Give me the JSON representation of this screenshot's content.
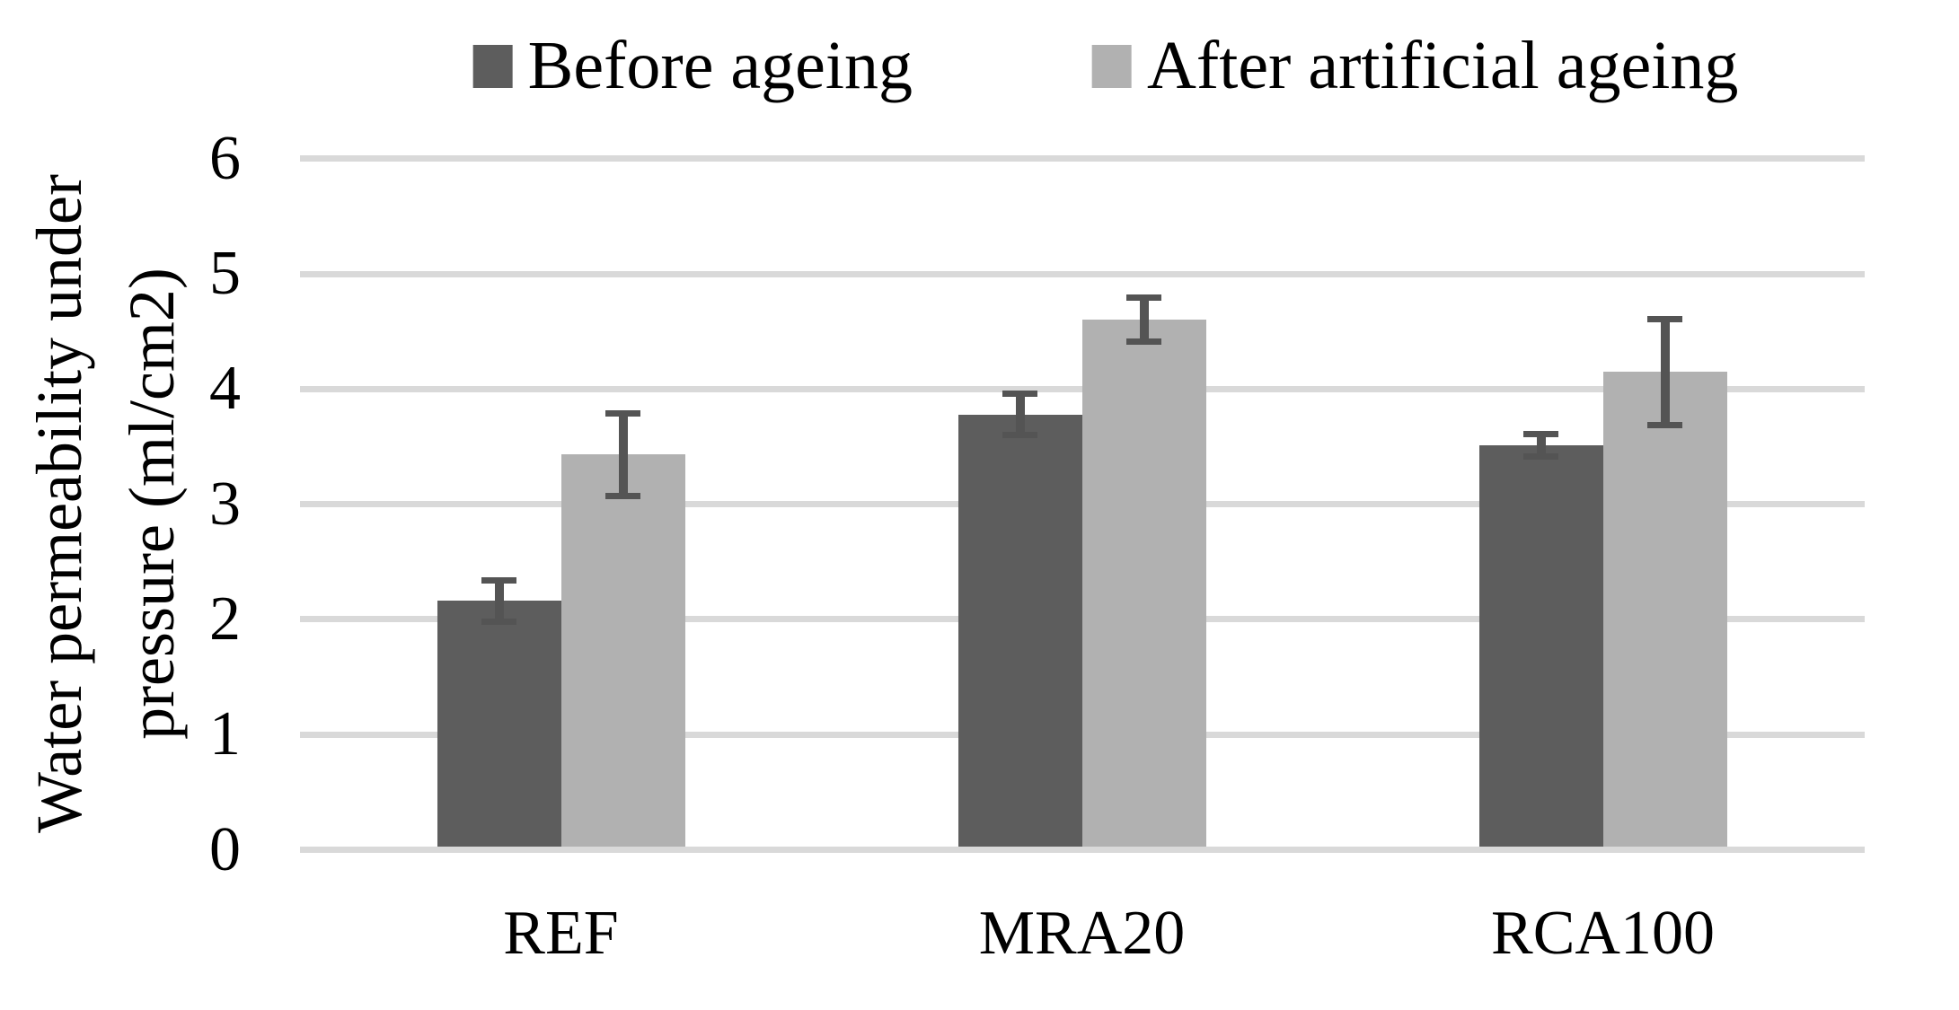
{
  "chart_data": {
    "type": "bar",
    "title": "",
    "categories": [
      "REF",
      "MRA20",
      "RCA100"
    ],
    "series": [
      {
        "name": "Before ageing",
        "color": "#5d5d5d",
        "values": [
          2.16,
          3.78,
          3.51
        ],
        "errors": [
          0.18,
          0.18,
          0.1
        ]
      },
      {
        "name": "After artificial ageing",
        "color": "#b1b1b1",
        "values": [
          3.43,
          4.6,
          4.15
        ],
        "errors": [
          0.36,
          0.19,
          0.46
        ]
      }
    ],
    "xlabel": "",
    "ylabel": "Water permeability under pressure (ml/cm2)",
    "ylabel_lines": [
      "Water permeability under",
      "pressure (ml/cm2)"
    ],
    "ylim": [
      0,
      6
    ],
    "yticks": [
      0,
      1,
      2,
      3,
      4,
      5,
      6
    ],
    "grid": true,
    "legend_position": "top",
    "error_bars": true,
    "colors": {
      "gridline": "#d9d9d9",
      "error_bar": "#545454",
      "background": "#ffffff",
      "text": "#000000"
    }
  }
}
